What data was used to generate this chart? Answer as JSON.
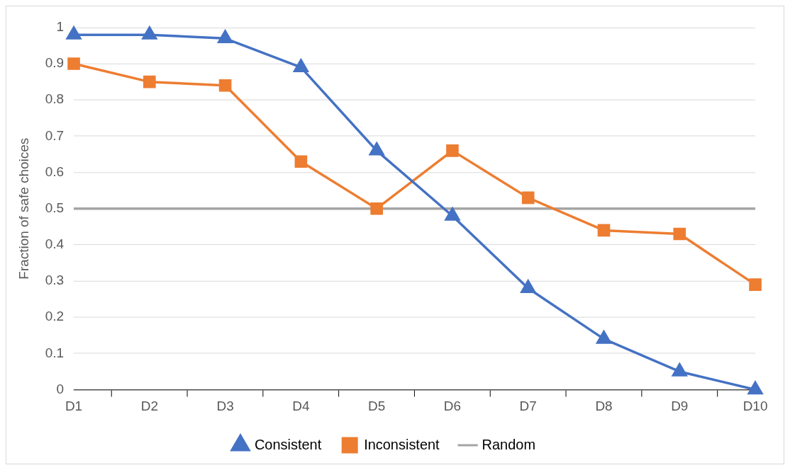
{
  "chart_data": {
    "type": "line",
    "ylabel": "Fraction of safe choices",
    "categories": [
      "D1",
      "D2",
      "D3",
      "D4",
      "D5",
      "D6",
      "D7",
      "D8",
      "D9",
      "D10"
    ],
    "ylim": [
      0,
      1
    ],
    "yticks": [
      0,
      0.1,
      0.2,
      0.3,
      0.4,
      0.5,
      0.6,
      0.7,
      0.8,
      0.9,
      1
    ],
    "grid": "y",
    "legend": "bottom",
    "series": [
      {
        "name": "Consistent",
        "color": "#4472c4",
        "marker": "triangle",
        "values": [
          0.98,
          0.98,
          0.97,
          0.89,
          0.66,
          0.48,
          0.28,
          0.14,
          0.05,
          0
        ]
      },
      {
        "name": "Inconsistent",
        "color": "#ed7d31",
        "marker": "square",
        "values": [
          0.9,
          0.85,
          0.84,
          0.63,
          0.5,
          0.66,
          0.53,
          0.44,
          0.43,
          0.29
        ]
      },
      {
        "name": "Random",
        "color": "#a5a5a5",
        "marker": "none",
        "values": [
          0.5,
          0.5,
          0.5,
          0.5,
          0.5,
          0.5,
          0.5,
          0.5,
          0.5,
          0.5
        ]
      }
    ]
  }
}
